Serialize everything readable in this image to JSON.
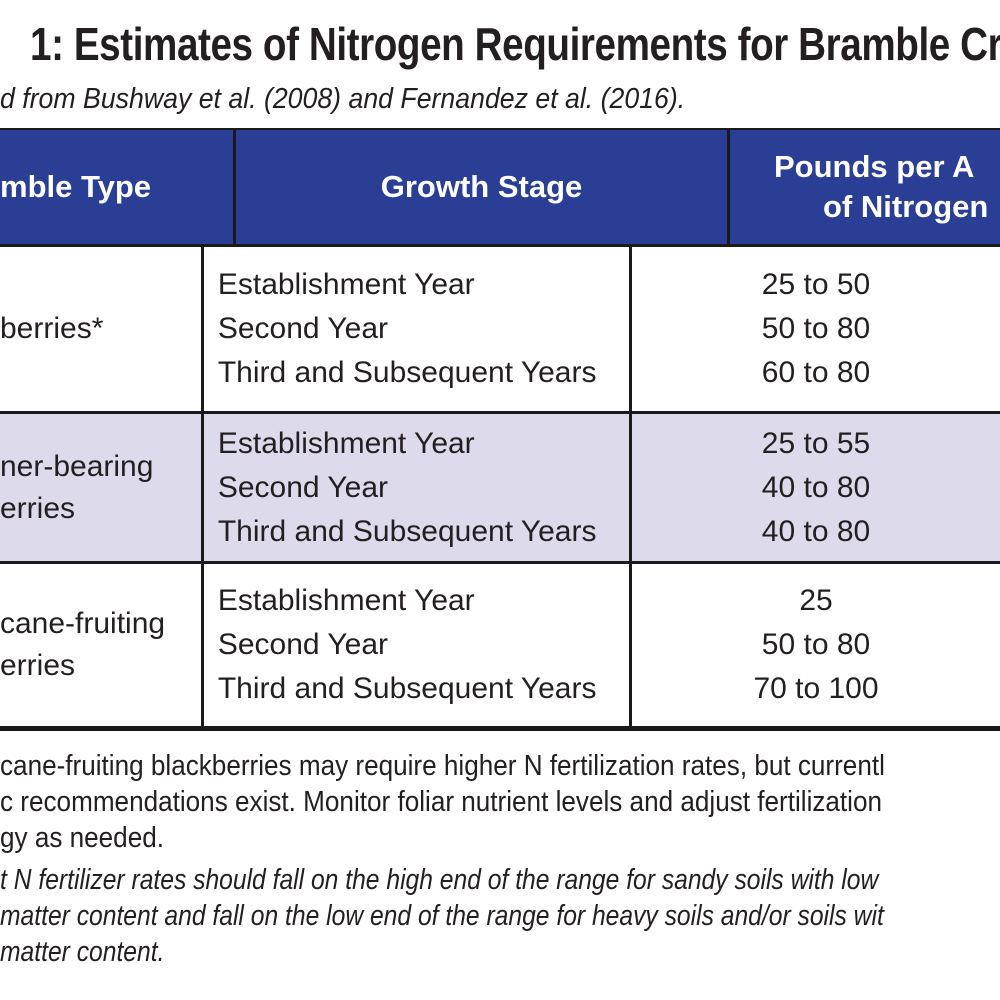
{
  "title": "1: Estimates of Nitrogen Requirements for Bramble Cr",
  "subtitle": "d from Bushway et al. (2008) and Fernandez et al. (2016).",
  "table": {
    "headers": {
      "col1": "mble Type",
      "col2": "Growth Stage",
      "col3_line1": "Pounds per A",
      "col3_line2": "of Nitrogen"
    },
    "rows": [
      {
        "type_lines": [
          "berries*",
          ""
        ],
        "stages": [
          "Establishment Year",
          "Second Year",
          "Third and Subsequent Years"
        ],
        "values": [
          "25 to 50",
          "50 to 80",
          "60 to 80"
        ]
      },
      {
        "type_lines": [
          "ner-bearing",
          "erries"
        ],
        "stages": [
          "Establishment Year",
          "Second Year",
          "Third and Subsequent Years"
        ],
        "values": [
          "25 to 55",
          "40 to 80",
          "40 to 80"
        ]
      },
      {
        "type_lines": [
          "cane-fruiting",
          "erries"
        ],
        "stages": [
          "Establishment Year",
          "Second Year",
          "Third and Subsequent Years"
        ],
        "values": [
          "25",
          "50 to 80",
          "70 to 100"
        ]
      }
    ]
  },
  "notes": {
    "note1_lines": [
      "cane-fruiting blackberries may require higher N fertilization rates, but currentl",
      "c recommendations exist. Monitor foliar nutrient levels and adjust fertilization",
      "gy as needed."
    ],
    "note2_lines": [
      "t N fertilizer rates should fall on the high end of the range for sandy soils with low",
      "matter content and fall on the low end of the range for heavy soils and/or soils wit",
      "matter content."
    ]
  },
  "colors": {
    "header_bg": "#2a3e96",
    "row_alt_bg": "#dcdaeb",
    "text": "#231f20",
    "border": "#1a1a1a",
    "header_text": "#ffffff"
  }
}
